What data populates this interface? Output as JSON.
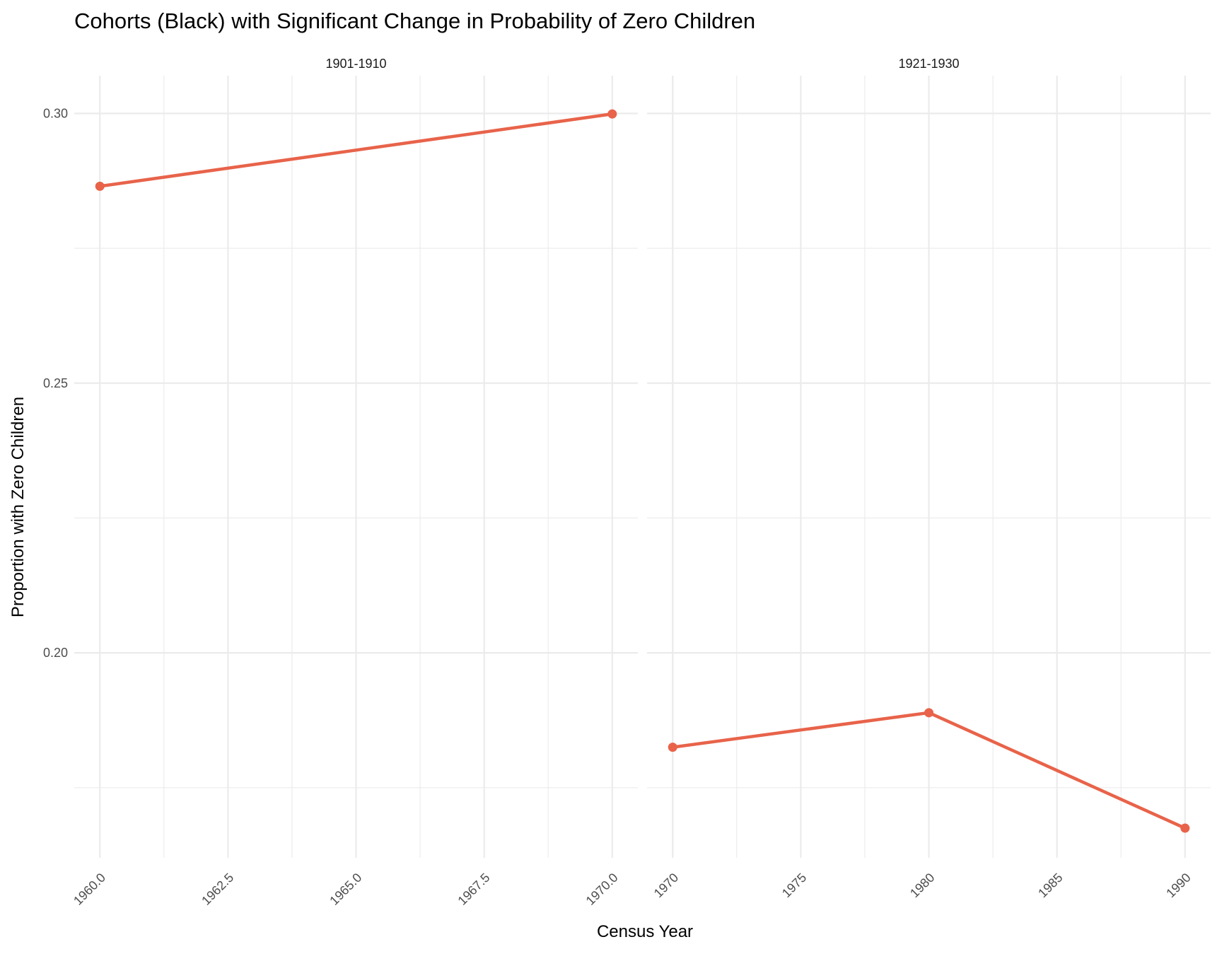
{
  "colors": {
    "series": "#E8634A",
    "grid": "#EBEBEB",
    "tick_text": "#4D4D4D"
  },
  "chart_data": {
    "type": "line",
    "title": "Cohorts (Black) with Significant Change in Probability of Zero Children",
    "xlabel": "Census Year",
    "ylabel": "Proportion with Zero Children",
    "ylim": [
      0.162,
      0.307
    ],
    "y_ticks": [
      0.2,
      0.25,
      0.3
    ],
    "y_tick_labels": [
      "0.20",
      "0.25",
      "0.30"
    ],
    "grid": true,
    "legend": "none",
    "facets": [
      {
        "label": "1901-1910",
        "xlim": [
          1959.5,
          1970.5
        ],
        "x_ticks": [
          1960.0,
          1962.5,
          1965.0,
          1967.5,
          1970.0
        ],
        "x_tick_labels": [
          "1960.0",
          "1962.5",
          "1965.0",
          "1967.5",
          "1970.0"
        ],
        "x": [
          1960,
          1970
        ],
        "y": [
          0.2865,
          0.2999
        ]
      },
      {
        "label": "1921-1930",
        "xlim": [
          1969.0,
          1991.0
        ],
        "x_ticks": [
          1970,
          1975,
          1980,
          1985,
          1990
        ],
        "x_tick_labels": [
          "1970",
          "1975",
          "1980",
          "1985",
          "1990"
        ],
        "x": [
          1970,
          1980,
          1990
        ],
        "y": [
          0.1825,
          0.1889,
          0.1675
        ]
      }
    ]
  }
}
